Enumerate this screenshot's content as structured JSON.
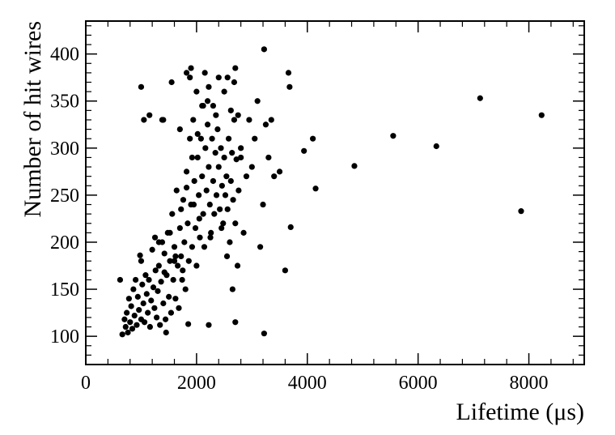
{
  "chart_data": {
    "type": "scatter",
    "xlabel": "Lifetime (μs)",
    "ylabel": "Number of hit wires",
    "xlim": [
      0,
      9000
    ],
    "ylim": [
      70,
      435
    ],
    "xticks": [
      0,
      2000,
      4000,
      6000,
      8000
    ],
    "yticks": [
      100,
      150,
      200,
      250,
      300,
      350,
      400
    ],
    "grid": false,
    "marker_color": "#000000",
    "points": [
      [
        620,
        160
      ],
      [
        660,
        102
      ],
      [
        700,
        118
      ],
      [
        720,
        110
      ],
      [
        740,
        125
      ],
      [
        760,
        104
      ],
      [
        780,
        140
      ],
      [
        800,
        115
      ],
      [
        820,
        132
      ],
      [
        840,
        108
      ],
      [
        860,
        150
      ],
      [
        880,
        122
      ],
      [
        900,
        160
      ],
      [
        920,
        112
      ],
      [
        940,
        142
      ],
      [
        960,
        128
      ],
      [
        980,
        186
      ],
      [
        1000,
        180
      ],
      [
        1000,
        118
      ],
      [
        1020,
        155
      ],
      [
        1040,
        135
      ],
      [
        1060,
        115
      ],
      [
        1080,
        165
      ],
      [
        1100,
        145
      ],
      [
        1120,
        125
      ],
      [
        1140,
        160
      ],
      [
        1160,
        110
      ],
      [
        1180,
        138
      ],
      [
        1200,
        192
      ],
      [
        1220,
        152
      ],
      [
        1240,
        130
      ],
      [
        1260,
        170
      ],
      [
        1280,
        120
      ],
      [
        1300,
        148
      ],
      [
        1320,
        175
      ],
      [
        1340,
        112
      ],
      [
        1360,
        158
      ],
      [
        1380,
        200
      ],
      [
        1400,
        135
      ],
      [
        1420,
        188
      ],
      [
        1440,
        118
      ],
      [
        1460,
        165
      ],
      [
        1480,
        210
      ],
      [
        1500,
        142
      ],
      [
        1520,
        180
      ],
      [
        1540,
        125
      ],
      [
        1560,
        230
      ],
      [
        1580,
        160
      ],
      [
        1600,
        195
      ],
      [
        1620,
        140
      ],
      [
        1640,
        255
      ],
      [
        1660,
        175
      ],
      [
        1680,
        130
      ],
      [
        1700,
        215
      ],
      [
        1720,
        185
      ],
      [
        1740,
        160
      ],
      [
        1760,
        245
      ],
      [
        1780,
        200
      ],
      [
        1800,
        150
      ],
      [
        1820,
        275
      ],
      [
        1840,
        220
      ],
      [
        1860,
        180
      ],
      [
        1880,
        310
      ],
      [
        1900,
        240
      ],
      [
        1920,
        195
      ],
      [
        1940,
        330
      ],
      [
        1960,
        265
      ],
      [
        1980,
        215
      ],
      [
        2000,
        175
      ],
      [
        2020,
        290
      ],
      [
        2040,
        250
      ],
      [
        2060,
        205
      ],
      [
        2080,
        310
      ],
      [
        2100,
        270
      ],
      [
        2120,
        230
      ],
      [
        2140,
        195
      ],
      [
        2160,
        300
      ],
      [
        2180,
        255
      ],
      [
        2200,
        325
      ],
      [
        2220,
        280
      ],
      [
        2240,
        240
      ],
      [
        2260,
        210
      ],
      [
        2280,
        310
      ],
      [
        2300,
        265
      ],
      [
        2320,
        230
      ],
      [
        2340,
        295
      ],
      [
        2360,
        250
      ],
      [
        2380,
        320
      ],
      [
        2400,
        280
      ],
      [
        2420,
        235
      ],
      [
        2440,
        300
      ],
      [
        2460,
        260
      ],
      [
        2480,
        220
      ],
      [
        2500,
        290
      ],
      [
        2520,
        250
      ],
      [
        2540,
        270
      ],
      [
        2560,
        235
      ],
      [
        2580,
        310
      ],
      [
        2600,
        200
      ],
      [
        2620,
        265
      ],
      [
        2640,
        295
      ],
      [
        2660,
        245
      ],
      [
        2680,
        330
      ],
      [
        2700,
        220
      ],
      [
        2720,
        288
      ],
      [
        2740,
        175
      ],
      [
        2760,
        255
      ],
      [
        2800,
        300
      ],
      [
        2850,
        210
      ],
      [
        2900,
        270
      ],
      [
        2950,
        330
      ],
      [
        3000,
        280
      ],
      [
        3050,
        310
      ],
      [
        3100,
        350
      ],
      [
        3150,
        195
      ],
      [
        3200,
        240
      ],
      [
        3250,
        325
      ],
      [
        3300,
        290
      ],
      [
        3350,
        330
      ],
      [
        3400,
        270
      ],
      [
        3500,
        275
      ],
      [
        3600,
        170
      ],
      [
        3680,
        365
      ],
      [
        3700,
        216
      ],
      [
        3940,
        297
      ],
      [
        4100,
        310
      ],
      [
        4150,
        257
      ],
      [
        4850,
        281
      ],
      [
        5550,
        313
      ],
      [
        6330,
        302
      ],
      [
        7120,
        353
      ],
      [
        7860,
        233
      ],
      [
        8230,
        335
      ],
      [
        1000,
        365
      ],
      [
        1050,
        330
      ],
      [
        1150,
        335
      ],
      [
        1380,
        330
      ],
      [
        1550,
        370
      ],
      [
        1700,
        320
      ],
      [
        1820,
        380
      ],
      [
        1880,
        375
      ],
      [
        2000,
        360
      ],
      [
        2100,
        345
      ],
      [
        2200,
        350
      ],
      [
        2300,
        345
      ],
      [
        2400,
        375
      ],
      [
        2500,
        360
      ],
      [
        2560,
        375
      ],
      [
        2620,
        340
      ],
      [
        2680,
        370
      ],
      [
        2700,
        385
      ],
      [
        2750,
        335
      ],
      [
        3220,
        405
      ],
      [
        3660,
        380
      ],
      [
        1400,
        330
      ],
      [
        1900,
        385
      ],
      [
        2150,
        380
      ],
      [
        2350,
        335
      ],
      [
        2800,
        290
      ],
      [
        1250,
        205
      ],
      [
        1600,
        180
      ],
      [
        1750,
        170
      ],
      [
        1950,
        240
      ],
      [
        2050,
        225
      ],
      [
        2250,
        205
      ],
      [
        2450,
        215
      ],
      [
        2550,
        185
      ],
      [
        2650,
        150
      ],
      [
        2700,
        115
      ],
      [
        3220,
        103
      ],
      [
        1450,
        104
      ],
      [
        1850,
        113
      ],
      [
        2220,
        112
      ],
      [
        1320,
        200
      ],
      [
        1420,
        168
      ],
      [
        1520,
        210
      ],
      [
        1620,
        185
      ],
      [
        1720,
        235
      ],
      [
        1820,
        258
      ],
      [
        1920,
        290
      ],
      [
        2020,
        315
      ],
      [
        2120,
        345
      ],
      [
        2220,
        365
      ]
    ]
  }
}
